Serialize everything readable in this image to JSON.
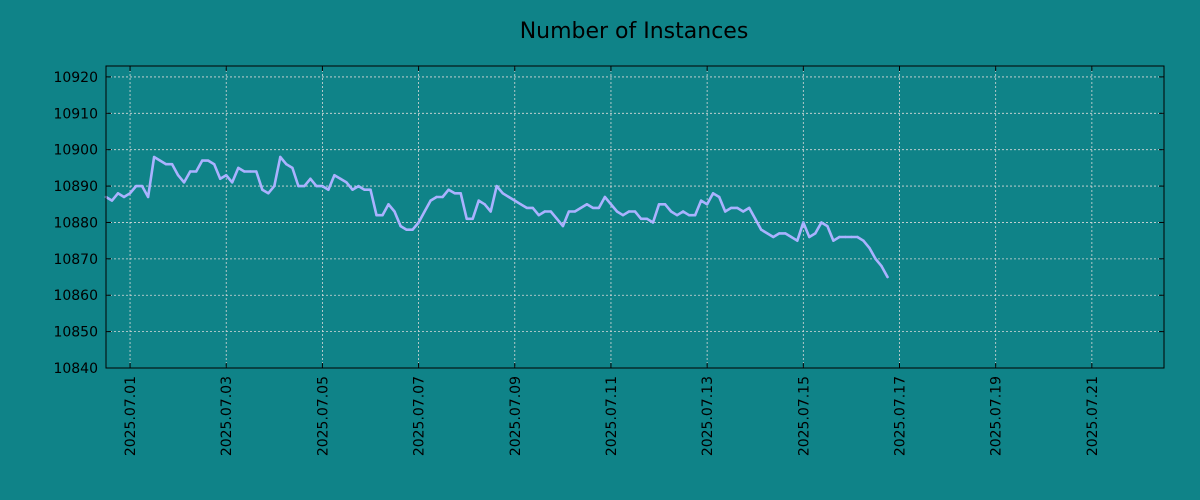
{
  "colors": {
    "background": "#0f8388",
    "line": "#aab2ff",
    "grid": "#d9d9d9",
    "axis": "#000000"
  },
  "chart_data": {
    "type": "line",
    "title": "Number of Instances",
    "xlabel": "",
    "ylabel": "",
    "grid": true,
    "legend": "none",
    "xlim": [
      "2025-06-30 12:00",
      "2025-07-22 12:00"
    ],
    "ylim": [
      10840,
      10923
    ],
    "yticks": [
      10840,
      10850,
      10860,
      10870,
      10880,
      10890,
      10900,
      10910,
      10920
    ],
    "xticks": [
      "2025.07.01",
      "2025.07.03",
      "2025.07.05",
      "2025.07.07",
      "2025.07.09",
      "2025.07.11",
      "2025.07.13",
      "2025.07.15",
      "2025.07.17",
      "2025.07.19",
      "2025.07.21"
    ],
    "series": [
      {
        "points": [
          [
            "2025-06-30 12:00",
            10887
          ],
          [
            "2025-06-30 15:00",
            10886
          ],
          [
            "2025-06-30 18:00",
            10888
          ],
          [
            "2025-06-30 21:00",
            10887
          ],
          [
            "2025-07-01 00:00",
            10888
          ],
          [
            "2025-07-01 03:00",
            10890
          ],
          [
            "2025-07-01 06:00",
            10890
          ],
          [
            "2025-07-01 09:00",
            10887
          ],
          [
            "2025-07-01 12:00",
            10898
          ],
          [
            "2025-07-01 15:00",
            10897
          ],
          [
            "2025-07-01 18:00",
            10896
          ],
          [
            "2025-07-01 21:00",
            10896
          ],
          [
            "2025-07-02 00:00",
            10893
          ],
          [
            "2025-07-02 03:00",
            10891
          ],
          [
            "2025-07-02 06:00",
            10894
          ],
          [
            "2025-07-02 09:00",
            10894
          ],
          [
            "2025-07-02 12:00",
            10897
          ],
          [
            "2025-07-02 15:00",
            10897
          ],
          [
            "2025-07-02 18:00",
            10896
          ],
          [
            "2025-07-02 21:00",
            10892
          ],
          [
            "2025-07-03 00:00",
            10893
          ],
          [
            "2025-07-03 03:00",
            10891
          ],
          [
            "2025-07-03 06:00",
            10895
          ],
          [
            "2025-07-03 09:00",
            10894
          ],
          [
            "2025-07-03 12:00",
            10894
          ],
          [
            "2025-07-03 15:00",
            10894
          ],
          [
            "2025-07-03 18:00",
            10889
          ],
          [
            "2025-07-03 21:00",
            10888
          ],
          [
            "2025-07-04 00:00",
            10890
          ],
          [
            "2025-07-04 03:00",
            10898
          ],
          [
            "2025-07-04 06:00",
            10896
          ],
          [
            "2025-07-04 09:00",
            10895
          ],
          [
            "2025-07-04 12:00",
            10890
          ],
          [
            "2025-07-04 15:00",
            10890
          ],
          [
            "2025-07-04 18:00",
            10892
          ],
          [
            "2025-07-04 21:00",
            10890
          ],
          [
            "2025-07-05 00:00",
            10890
          ],
          [
            "2025-07-05 03:00",
            10889
          ],
          [
            "2025-07-05 06:00",
            10893
          ],
          [
            "2025-07-05 09:00",
            10892
          ],
          [
            "2025-07-05 12:00",
            10891
          ],
          [
            "2025-07-05 15:00",
            10889
          ],
          [
            "2025-07-05 18:00",
            10890
          ],
          [
            "2025-07-05 21:00",
            10889
          ],
          [
            "2025-07-06 00:00",
            10889
          ],
          [
            "2025-07-06 03:00",
            10882
          ],
          [
            "2025-07-06 06:00",
            10882
          ],
          [
            "2025-07-06 09:00",
            10885
          ],
          [
            "2025-07-06 12:00",
            10883
          ],
          [
            "2025-07-06 15:00",
            10879
          ],
          [
            "2025-07-06 18:00",
            10878
          ],
          [
            "2025-07-06 21:00",
            10878
          ],
          [
            "2025-07-07 00:00",
            10880
          ],
          [
            "2025-07-07 03:00",
            10883
          ],
          [
            "2025-07-07 06:00",
            10886
          ],
          [
            "2025-07-07 09:00",
            10887
          ],
          [
            "2025-07-07 12:00",
            10887
          ],
          [
            "2025-07-07 15:00",
            10889
          ],
          [
            "2025-07-07 18:00",
            10888
          ],
          [
            "2025-07-07 21:00",
            10888
          ],
          [
            "2025-07-08 00:00",
            10881
          ],
          [
            "2025-07-08 03:00",
            10881
          ],
          [
            "2025-07-08 06:00",
            10886
          ],
          [
            "2025-07-08 09:00",
            10885
          ],
          [
            "2025-07-08 12:00",
            10883
          ],
          [
            "2025-07-08 15:00",
            10890
          ],
          [
            "2025-07-08 18:00",
            10888
          ],
          [
            "2025-07-08 21:00",
            10887
          ],
          [
            "2025-07-09 00:00",
            10886
          ],
          [
            "2025-07-09 03:00",
            10885
          ],
          [
            "2025-07-09 06:00",
            10884
          ],
          [
            "2025-07-09 09:00",
            10884
          ],
          [
            "2025-07-09 12:00",
            10882
          ],
          [
            "2025-07-09 15:00",
            10883
          ],
          [
            "2025-07-09 18:00",
            10883
          ],
          [
            "2025-07-09 21:00",
            10881
          ],
          [
            "2025-07-10 00:00",
            10879
          ],
          [
            "2025-07-10 03:00",
            10883
          ],
          [
            "2025-07-10 06:00",
            10883
          ],
          [
            "2025-07-10 09:00",
            10884
          ],
          [
            "2025-07-10 12:00",
            10885
          ],
          [
            "2025-07-10 15:00",
            10884
          ],
          [
            "2025-07-10 18:00",
            10884
          ],
          [
            "2025-07-10 21:00",
            10887
          ],
          [
            "2025-07-11 00:00",
            10885
          ],
          [
            "2025-07-11 03:00",
            10883
          ],
          [
            "2025-07-11 06:00",
            10882
          ],
          [
            "2025-07-11 09:00",
            10883
          ],
          [
            "2025-07-11 12:00",
            10883
          ],
          [
            "2025-07-11 15:00",
            10881
          ],
          [
            "2025-07-11 18:00",
            10881
          ],
          [
            "2025-07-11 21:00",
            10880
          ],
          [
            "2025-07-12 00:00",
            10885
          ],
          [
            "2025-07-12 03:00",
            10885
          ],
          [
            "2025-07-12 06:00",
            10883
          ],
          [
            "2025-07-12 09:00",
            10882
          ],
          [
            "2025-07-12 12:00",
            10883
          ],
          [
            "2025-07-12 15:00",
            10882
          ],
          [
            "2025-07-12 18:00",
            10882
          ],
          [
            "2025-07-12 21:00",
            10886
          ],
          [
            "2025-07-13 00:00",
            10885
          ],
          [
            "2025-07-13 03:00",
            10888
          ],
          [
            "2025-07-13 06:00",
            10887
          ],
          [
            "2025-07-13 09:00",
            10883
          ],
          [
            "2025-07-13 12:00",
            10884
          ],
          [
            "2025-07-13 15:00",
            10884
          ],
          [
            "2025-07-13 18:00",
            10883
          ],
          [
            "2025-07-13 21:00",
            10884
          ],
          [
            "2025-07-14 00:00",
            10881
          ],
          [
            "2025-07-14 03:00",
            10878
          ],
          [
            "2025-07-14 06:00",
            10877
          ],
          [
            "2025-07-14 09:00",
            10876
          ],
          [
            "2025-07-14 12:00",
            10877
          ],
          [
            "2025-07-14 15:00",
            10877
          ],
          [
            "2025-07-14 18:00",
            10876
          ],
          [
            "2025-07-14 21:00",
            10875
          ],
          [
            "2025-07-15 00:00",
            10880
          ],
          [
            "2025-07-15 03:00",
            10876
          ],
          [
            "2025-07-15 06:00",
            10877
          ],
          [
            "2025-07-15 09:00",
            10880
          ],
          [
            "2025-07-15 12:00",
            10879
          ],
          [
            "2025-07-15 15:00",
            10875
          ],
          [
            "2025-07-15 18:00",
            10876
          ],
          [
            "2025-07-15 21:00",
            10876
          ],
          [
            "2025-07-16 00:00",
            10876
          ],
          [
            "2025-07-16 03:00",
            10876
          ],
          [
            "2025-07-16 06:00",
            10875
          ],
          [
            "2025-07-16 09:00",
            10873
          ],
          [
            "2025-07-16 12:00",
            10870
          ],
          [
            "2025-07-16 15:00",
            10868
          ],
          [
            "2025-07-16 18:00",
            10865
          ]
        ]
      }
    ]
  }
}
